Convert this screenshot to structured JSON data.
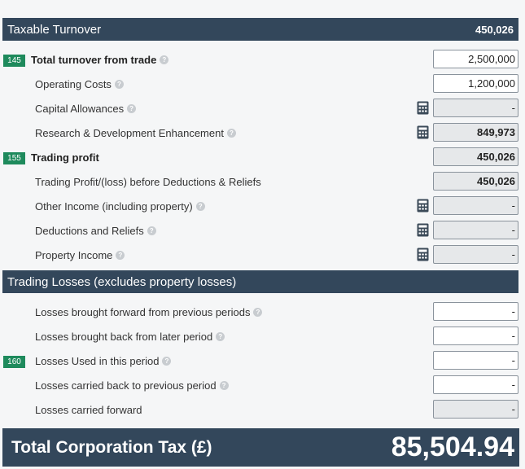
{
  "taxable_section": {
    "title": "Taxable Turnover",
    "value": "450,026"
  },
  "rows1": [
    {
      "code": "145",
      "label": "Total turnover from trade",
      "value": "2,500,000"
    },
    {
      "label": "Operating Costs",
      "value": "1,200,000"
    },
    {
      "label": "Capital Allowances",
      "value": "-"
    },
    {
      "label": "Research & Development Enhancement",
      "value": "849,973"
    },
    {
      "code": "155",
      "label": "Trading profit",
      "value": "450,026"
    },
    {
      "label": "Trading Profit/(loss) before Deductions & Reliefs",
      "value": "450,026"
    },
    {
      "label": "Other Income (including property)",
      "value": "-"
    },
    {
      "label": "Deductions and Reliefs",
      "value": "-"
    },
    {
      "label": "Property Income",
      "value": "-"
    }
  ],
  "losses_section": {
    "title": "Trading Losses (excludes property losses)"
  },
  "rows2": [
    {
      "label": "Losses brought forward from previous periods",
      "value": "-"
    },
    {
      "label": "Losses brought back from later period",
      "value": "-"
    },
    {
      "code": "160",
      "label": "Losses Used in this period",
      "value": "-"
    },
    {
      "label": "Losses carried back to previous period",
      "value": "-"
    },
    {
      "label": "Losses carried forward",
      "value": "-"
    }
  ],
  "total": {
    "label": "Total Corporation Tax (£)",
    "value": "85,504.94"
  },
  "icons": {
    "help": "question-circle-icon",
    "calculator": "calculator-icon"
  },
  "colors": {
    "header": "#33475b",
    "badge": "#1e8a5c"
  }
}
